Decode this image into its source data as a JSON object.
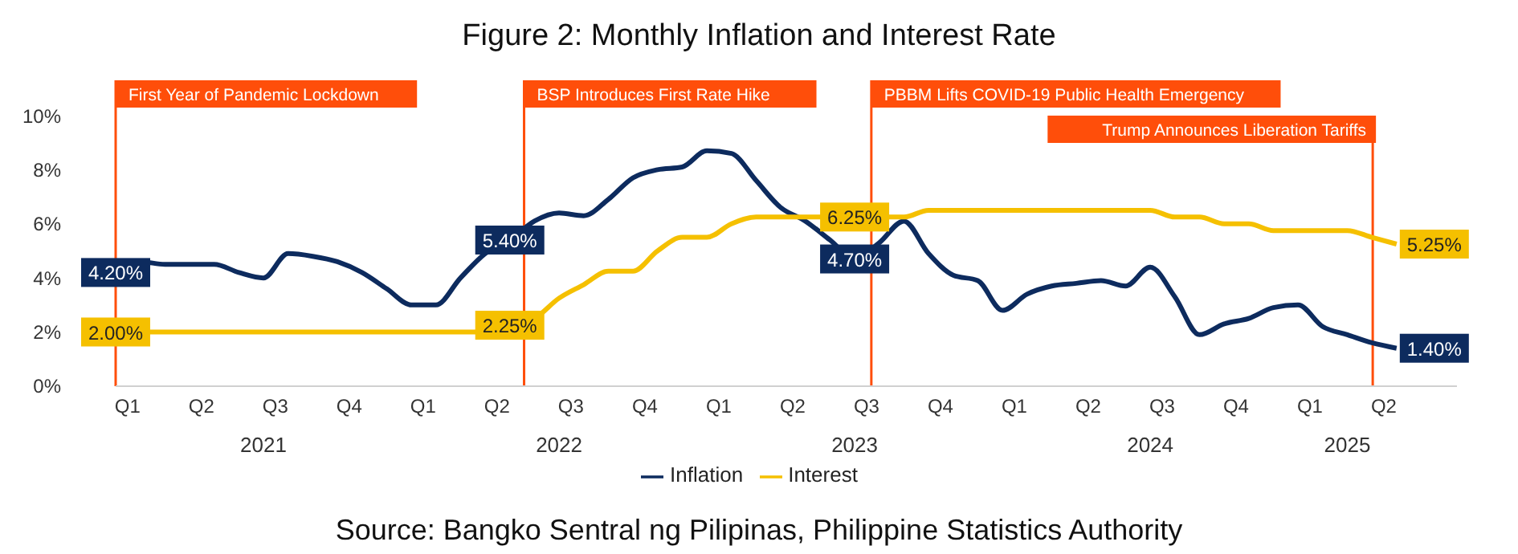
{
  "chart_data": {
    "type": "line",
    "title": "Figure 2: Monthly Inflation and Interest Rate",
    "x": [
      "2021-01",
      "2021-02",
      "2021-03",
      "2021-04",
      "2021-05",
      "2021-06",
      "2021-07",
      "2021-08",
      "2021-09",
      "2021-10",
      "2021-11",
      "2021-12",
      "2022-01",
      "2022-02",
      "2022-03",
      "2022-04",
      "2022-05",
      "2022-06",
      "2022-07",
      "2022-08",
      "2022-09",
      "2022-10",
      "2022-11",
      "2022-12",
      "2023-01",
      "2023-02",
      "2023-03",
      "2023-04",
      "2023-05",
      "2023-06",
      "2023-07",
      "2023-08",
      "2023-09",
      "2023-10",
      "2023-11",
      "2023-12",
      "2024-01",
      "2024-02",
      "2024-03",
      "2024-04",
      "2024-05",
      "2024-06",
      "2024-07",
      "2024-08",
      "2024-09",
      "2024-10",
      "2024-11",
      "2024-12",
      "2025-01",
      "2025-02",
      "2025-03",
      "2025-04",
      "2025-05"
    ],
    "series": [
      {
        "name": "Inflation",
        "color": "#0d2b5e",
        "values": [
          4.2,
          4.6,
          4.5,
          4.5,
          4.5,
          4.2,
          4.0,
          4.9,
          4.8,
          4.6,
          4.2,
          3.6,
          3.0,
          3.0,
          4.0,
          4.9,
          5.4,
          6.1,
          6.4,
          6.3,
          6.9,
          7.7,
          8.0,
          8.1,
          8.7,
          8.6,
          7.6,
          6.6,
          6.1,
          5.4,
          4.7,
          5.3,
          6.1,
          4.9,
          4.1,
          3.9,
          2.8,
          3.4,
          3.7,
          3.8,
          3.9,
          3.7,
          4.4,
          3.3,
          1.9,
          2.3,
          2.5,
          2.9,
          3.0,
          2.2,
          1.9,
          1.6,
          1.4
        ],
        "value_labels": [
          "4.20%",
          null,
          null,
          null,
          null,
          null,
          null,
          null,
          null,
          null,
          null,
          null,
          null,
          null,
          null,
          null,
          "5.40%",
          null,
          null,
          null,
          null,
          null,
          null,
          null,
          null,
          null,
          null,
          null,
          null,
          null,
          "4.70%",
          null,
          null,
          null,
          null,
          null,
          null,
          null,
          null,
          null,
          null,
          null,
          null,
          null,
          null,
          null,
          null,
          null,
          null,
          null,
          null,
          null,
          "1.40%"
        ]
      },
      {
        "name": "Interest",
        "color": "#f5c000",
        "values": [
          2.0,
          2.0,
          2.0,
          2.0,
          2.0,
          2.0,
          2.0,
          2.0,
          2.0,
          2.0,
          2.0,
          2.0,
          2.0,
          2.0,
          2.0,
          2.0,
          2.25,
          2.5,
          3.25,
          3.75,
          4.25,
          4.25,
          5.0,
          5.5,
          5.5,
          6.0,
          6.25,
          6.25,
          6.25,
          6.25,
          6.25,
          6.25,
          6.25,
          6.5,
          6.5,
          6.5,
          6.5,
          6.5,
          6.5,
          6.5,
          6.5,
          6.5,
          6.5,
          6.25,
          6.25,
          6.0,
          6.0,
          5.75,
          5.75,
          5.75,
          5.75,
          5.5,
          5.25
        ],
        "value_labels": [
          "2.00%",
          null,
          null,
          null,
          null,
          null,
          null,
          null,
          null,
          null,
          null,
          null,
          null,
          null,
          null,
          null,
          "2.25%",
          null,
          null,
          null,
          null,
          null,
          null,
          null,
          null,
          null,
          null,
          null,
          null,
          null,
          "6.25%",
          null,
          null,
          null,
          null,
          null,
          null,
          null,
          null,
          null,
          null,
          null,
          null,
          null,
          null,
          null,
          null,
          null,
          null,
          null,
          null,
          null,
          "5.25%"
        ]
      }
    ],
    "xlim": [
      "2021-01",
      "2025-07-15"
    ],
    "xticks": [
      {
        "value": "2021-01-16",
        "label": "Q1"
      },
      {
        "value": "2021-04-16",
        "label": "Q2"
      },
      {
        "value": "2021-07-16",
        "label": "Q3"
      },
      {
        "value": "2021-10-16",
        "label": "Q4"
      },
      {
        "value": "2022-01-16",
        "label": "Q1"
      },
      {
        "value": "2022-04-16",
        "label": "Q2"
      },
      {
        "value": "2022-07-16",
        "label": "Q3"
      },
      {
        "value": "2022-10-16",
        "label": "Q4"
      },
      {
        "value": "2023-01-16",
        "label": "Q1"
      },
      {
        "value": "2023-04-16",
        "label": "Q2"
      },
      {
        "value": "2023-07-16",
        "label": "Q3"
      },
      {
        "value": "2023-10-16",
        "label": "Q4"
      },
      {
        "value": "2024-01-16",
        "label": "Q1"
      },
      {
        "value": "2024-04-16",
        "label": "Q2"
      },
      {
        "value": "2024-07-16",
        "label": "Q3"
      },
      {
        "value": "2024-10-16",
        "label": "Q4"
      },
      {
        "value": "2025-01-16",
        "label": "Q1"
      },
      {
        "value": "2025-04-16",
        "label": "Q2"
      }
    ],
    "ylim": [
      0,
      10
    ],
    "yticks": [
      {
        "value": 0,
        "label": "0%"
      },
      {
        "value": 2,
        "label": "2%"
      },
      {
        "value": 4,
        "label": "4%"
      },
      {
        "value": 6,
        "label": "6%"
      },
      {
        "value": 8,
        "label": "8%"
      },
      {
        "value": 10,
        "label": "10%"
      }
    ],
    "ref_lines": [
      {
        "axis": "x",
        "value": "2021-01",
        "label": "First Year of Pandemic Lockdown",
        "color": "#ff4e0a"
      },
      {
        "axis": "x",
        "value": "2022-05-19",
        "label": "BSP Introduces First Rate Hike",
        "color": "#ff4e0a"
      },
      {
        "axis": "x",
        "value": "2023-07-22",
        "label": "PBBM Lifts COVID-19 Public Health Emergency",
        "color": "#ff4e0a"
      },
      {
        "axis": "x",
        "value": "2025-04-02",
        "label": "Trump Announces Liberation Tariffs",
        "color": "#ff4e0a"
      }
    ],
    "x2lim": [
      "2021-01",
      "2025-07-15"
    ],
    "x2ticks": [
      {
        "value": "2021-07-01",
        "label": "2021"
      },
      {
        "value": "2022-07-01",
        "label": "2022"
      },
      {
        "value": "2023-07-01",
        "label": "2023"
      },
      {
        "value": "2024-07-01",
        "label": "2024"
      },
      {
        "value": "2025-03-01",
        "label": "2025"
      }
    ],
    "annotations": [
      "Source: Bangko Sentral ng Pilipinas, Philippine Statistics Authority"
    ],
    "legend": "bottom",
    "grid": false,
    "marker": "none",
    "line_style": "solid"
  }
}
